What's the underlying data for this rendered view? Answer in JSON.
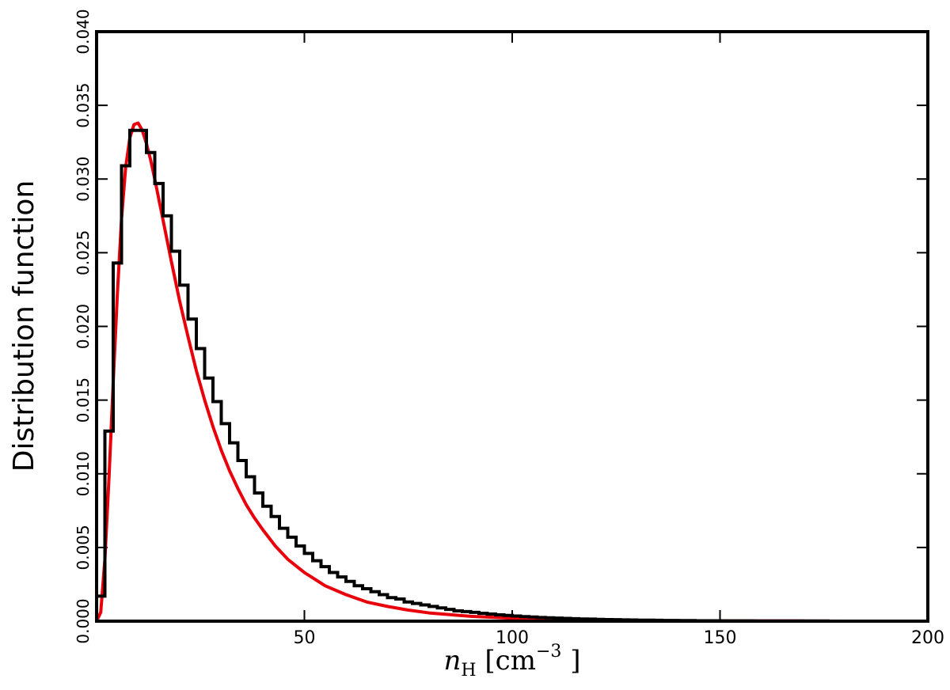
{
  "chart_data": {
    "type": "line",
    "title": "",
    "xlabel": {
      "symbol": "n",
      "subscript": "H",
      "unit_open": " [cm",
      "unit_power": "−3",
      "unit_close": " ]"
    },
    "ylabel": "Distribution function",
    "xlim": [
      0,
      200
    ],
    "ylim": [
      0,
      0.04
    ],
    "xticks": [
      0,
      50,
      100,
      150,
      200
    ],
    "xtick_labels": [
      "",
      "50",
      "100",
      "150",
      "200"
    ],
    "yticks": [
      0,
      0.005,
      0.01,
      0.015,
      0.02,
      0.025,
      0.03,
      0.035,
      0.04
    ],
    "ytick_labels": [
      "0.000",
      "0.005",
      "0.010",
      "0.015",
      "0.020",
      "0.025",
      "0.030",
      "0.035",
      "0.040"
    ],
    "grid": false,
    "legend": "none",
    "series": [
      {
        "kind": "histogram-step",
        "color": "#000000",
        "bin_width": 2,
        "bin_edges_start": 0,
        "values": [
          0.0017,
          0.0129,
          0.0243,
          0.0309,
          0.0333,
          0.0333,
          0.0318,
          0.0297,
          0.0275,
          0.0251,
          0.0228,
          0.0205,
          0.0185,
          0.0165,
          0.0149,
          0.0134,
          0.0121,
          0.0109,
          0.0098,
          0.0087,
          0.0078,
          0.0071,
          0.0063,
          0.0057,
          0.0051,
          0.0046,
          0.0041,
          0.0037,
          0.0033,
          0.003,
          0.0027,
          0.0024,
          0.0022,
          0.002,
          0.0018,
          0.0016,
          0.0015,
          0.0013,
          0.0012,
          0.0011,
          0.001,
          0.0009,
          0.0008,
          0.0007,
          0.00065,
          0.0006,
          0.00053,
          0.00048,
          0.00043,
          0.00039,
          0.00035,
          0.00031,
          0.00028,
          0.00025,
          0.00023,
          0.00021,
          0.00019,
          0.00017,
          0.00015,
          0.00014,
          0.00012,
          0.00011,
          0.0001,
          9e-05,
          8e-05,
          7e-05,
          7e-05,
          6e-05,
          5e-05,
          5e-05,
          4e-05,
          4e-05,
          3e-05,
          3e-05,
          3e-05,
          2e-05,
          2e-05,
          2e-05,
          2e-05,
          1e-05,
          1e-05,
          1e-05,
          1e-05,
          1e-05,
          1e-05,
          1e-05,
          1e-05,
          1e-05,
          0.0,
          0.0,
          0.0,
          0.0,
          0.0,
          0.0,
          0.0,
          0.0,
          0.0,
          0.0,
          0.0,
          0.0
        ]
      },
      {
        "kind": "curve",
        "color": "#e8000b",
        "x": [
          0,
          1,
          2,
          3,
          4,
          5,
          6,
          7,
          8,
          9,
          10,
          11,
          12,
          13,
          14,
          15,
          16,
          18,
          20,
          22,
          24,
          26,
          28,
          30,
          32,
          34,
          36,
          38,
          40,
          43,
          46,
          50,
          55,
          60,
          65,
          70,
          75,
          80,
          90,
          100,
          110,
          120,
          130,
          140,
          150,
          160,
          170,
          180,
          190,
          200
        ],
        "y": [
          0.0,
          0.0006,
          0.0042,
          0.0098,
          0.0162,
          0.0222,
          0.0273,
          0.0308,
          0.0328,
          0.0337,
          0.0338,
          0.0333,
          0.0324,
          0.0313,
          0.03,
          0.0286,
          0.0272,
          0.0244,
          0.0217,
          0.0193,
          0.017,
          0.015,
          0.0132,
          0.0116,
          0.0102,
          0.009,
          0.0079,
          0.007,
          0.0062,
          0.0051,
          0.0042,
          0.0033,
          0.0024,
          0.0018,
          0.0013,
          0.001,
          0.00075,
          0.00056,
          0.00033,
          0.0002,
          0.00012,
          8e-05,
          5e-05,
          3e-05,
          2e-05,
          1e-05,
          1e-05,
          0.0,
          0.0,
          0.0
        ]
      }
    ]
  }
}
